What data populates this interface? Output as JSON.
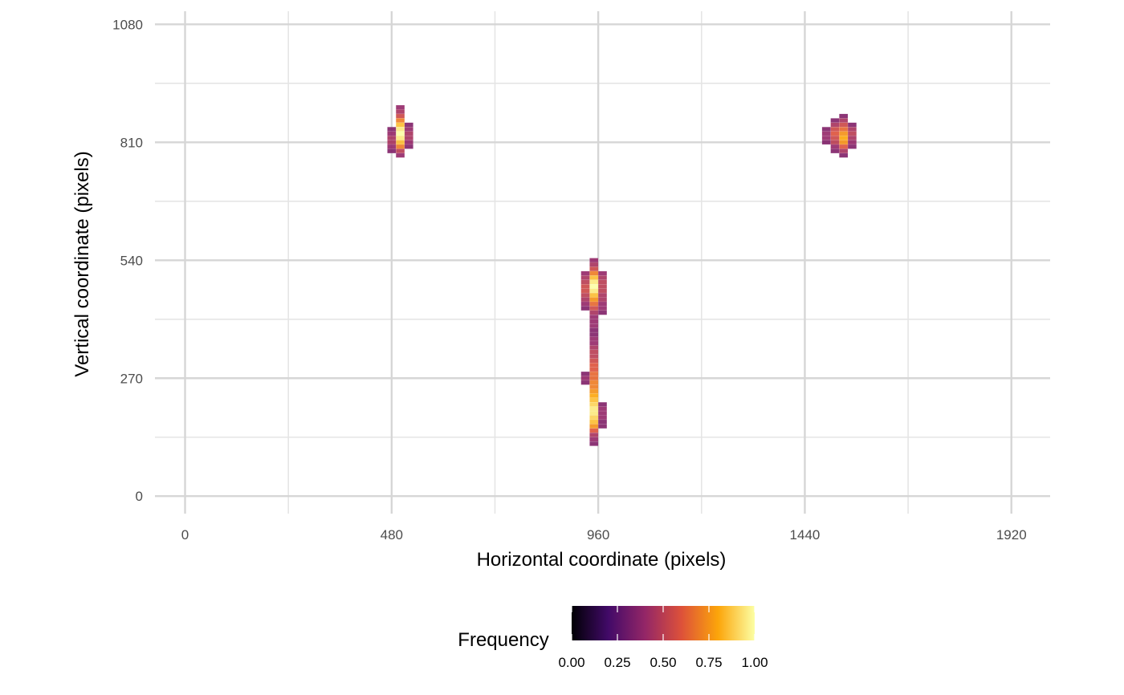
{
  "chart_data": {
    "type": "heatmap",
    "title": "",
    "xlabel": "Horizontal coordinate (pixels)",
    "ylabel": "Vertical coordinate (pixels)",
    "xlim": [
      -70,
      2010
    ],
    "ylim": [
      -40,
      1110
    ],
    "x_ticks": [
      0,
      480,
      960,
      1440,
      1920
    ],
    "x_tick_labels": [
      "0",
      "480",
      "960",
      "1440",
      "1920"
    ],
    "y_ticks": [
      0,
      270,
      540,
      810,
      1080
    ],
    "y_tick_labels": [
      "0",
      "270",
      "540",
      "810",
      "1080"
    ],
    "x_minor": [
      240,
      720,
      1200,
      1680
    ],
    "y_minor": [
      135,
      405,
      675,
      945
    ],
    "grid": true,
    "legend": {
      "title": "Frequency",
      "placement": "bottom",
      "ticks": [
        0,
        0.25,
        0.5,
        0.75,
        1.0
      ],
      "tick_labels": [
        "0.00",
        "0.25",
        "0.50",
        "0.75",
        "1.00"
      ],
      "colors": [
        "#000004",
        "#420a68",
        "#932667",
        "#dd513a",
        "#fca50a",
        "#fcffa4"
      ]
    },
    "bin_size": [
      20,
      10
    ],
    "cells": [
      [
        500,
        890,
        0.4
      ],
      [
        500,
        880,
        0.45
      ],
      [
        500,
        870,
        0.55
      ],
      [
        500,
        860,
        0.7
      ],
      [
        500,
        850,
        0.85
      ],
      [
        500,
        840,
        0.95
      ],
      [
        500,
        830,
        1.0
      ],
      [
        500,
        820,
        0.95
      ],
      [
        500,
        810,
        0.85
      ],
      [
        500,
        800,
        0.7
      ],
      [
        500,
        790,
        0.5
      ],
      [
        500,
        780,
        0.4
      ],
      [
        480,
        840,
        0.35
      ],
      [
        480,
        830,
        0.4
      ],
      [
        480,
        820,
        0.45
      ],
      [
        480,
        810,
        0.45
      ],
      [
        480,
        800,
        0.4
      ],
      [
        480,
        790,
        0.35
      ],
      [
        520,
        850,
        0.35
      ],
      [
        520,
        840,
        0.4
      ],
      [
        520,
        830,
        0.45
      ],
      [
        520,
        820,
        0.45
      ],
      [
        520,
        810,
        0.4
      ],
      [
        520,
        800,
        0.35
      ],
      [
        1530,
        870,
        0.35
      ],
      [
        1530,
        860,
        0.45
      ],
      [
        1530,
        850,
        0.55
      ],
      [
        1530,
        840,
        0.65
      ],
      [
        1530,
        830,
        0.75
      ],
      [
        1530,
        820,
        0.8
      ],
      [
        1530,
        810,
        0.75
      ],
      [
        1530,
        800,
        0.6
      ],
      [
        1530,
        790,
        0.45
      ],
      [
        1530,
        780,
        0.35
      ],
      [
        1510,
        860,
        0.35
      ],
      [
        1510,
        850,
        0.45
      ],
      [
        1510,
        840,
        0.55
      ],
      [
        1510,
        830,
        0.6
      ],
      [
        1510,
        820,
        0.55
      ],
      [
        1510,
        810,
        0.5
      ],
      [
        1510,
        800,
        0.4
      ],
      [
        1510,
        790,
        0.35
      ],
      [
        1550,
        850,
        0.35
      ],
      [
        1550,
        840,
        0.45
      ],
      [
        1550,
        830,
        0.5
      ],
      [
        1550,
        820,
        0.45
      ],
      [
        1550,
        810,
        0.4
      ],
      [
        1550,
        800,
        0.35
      ],
      [
        1490,
        840,
        0.35
      ],
      [
        1490,
        830,
        0.4
      ],
      [
        1490,
        820,
        0.4
      ],
      [
        1490,
        810,
        0.35
      ],
      [
        950,
        540,
        0.4
      ],
      [
        950,
        530,
        0.45
      ],
      [
        950,
        520,
        0.55
      ],
      [
        950,
        510,
        0.7
      ],
      [
        950,
        500,
        0.85
      ],
      [
        950,
        490,
        0.95
      ],
      [
        950,
        480,
        1.0
      ],
      [
        950,
        470,
        0.95
      ],
      [
        950,
        460,
        0.85
      ],
      [
        950,
        450,
        0.75
      ],
      [
        950,
        440,
        0.65
      ],
      [
        950,
        430,
        0.55
      ],
      [
        950,
        420,
        0.45
      ],
      [
        950,
        410,
        0.4
      ],
      [
        930,
        510,
        0.4
      ],
      [
        930,
        500,
        0.45
      ],
      [
        930,
        490,
        0.5
      ],
      [
        930,
        480,
        0.55
      ],
      [
        930,
        470,
        0.55
      ],
      [
        930,
        460,
        0.5
      ],
      [
        930,
        450,
        0.45
      ],
      [
        930,
        440,
        0.4
      ],
      [
        930,
        430,
        0.35
      ],
      [
        970,
        510,
        0.4
      ],
      [
        970,
        500,
        0.45
      ],
      [
        970,
        490,
        0.5
      ],
      [
        970,
        480,
        0.5
      ],
      [
        970,
        470,
        0.5
      ],
      [
        970,
        460,
        0.45
      ],
      [
        970,
        450,
        0.45
      ],
      [
        970,
        440,
        0.4
      ],
      [
        970,
        430,
        0.4
      ],
      [
        970,
        420,
        0.35
      ],
      [
        950,
        400,
        0.4
      ],
      [
        950,
        390,
        0.4
      ],
      [
        950,
        380,
        0.35
      ],
      [
        950,
        370,
        0.35
      ],
      [
        950,
        360,
        0.4
      ],
      [
        950,
        350,
        0.4
      ],
      [
        950,
        340,
        0.45
      ],
      [
        950,
        330,
        0.5
      ],
      [
        950,
        320,
        0.5
      ],
      [
        950,
        310,
        0.55
      ],
      [
        950,
        300,
        0.6
      ],
      [
        950,
        290,
        0.6
      ],
      [
        950,
        280,
        0.65
      ],
      [
        950,
        270,
        0.65
      ],
      [
        950,
        260,
        0.7
      ],
      [
        950,
        250,
        0.7
      ],
      [
        950,
        240,
        0.75
      ],
      [
        950,
        230,
        0.8
      ],
      [
        950,
        220,
        0.85
      ],
      [
        950,
        210,
        0.9
      ],
      [
        950,
        200,
        0.95
      ],
      [
        950,
        190,
        0.95
      ],
      [
        950,
        180,
        0.9
      ],
      [
        950,
        170,
        0.85
      ],
      [
        950,
        160,
        0.75
      ],
      [
        950,
        150,
        0.6
      ],
      [
        950,
        140,
        0.45
      ],
      [
        950,
        130,
        0.4
      ],
      [
        950,
        120,
        0.35
      ],
      [
        930,
        280,
        0.35
      ],
      [
        930,
        270,
        0.4
      ],
      [
        930,
        260,
        0.35
      ],
      [
        970,
        210,
        0.35
      ],
      [
        970,
        200,
        0.4
      ],
      [
        970,
        190,
        0.4
      ],
      [
        970,
        180,
        0.4
      ],
      [
        970,
        170,
        0.35
      ],
      [
        970,
        160,
        0.35
      ]
    ]
  }
}
